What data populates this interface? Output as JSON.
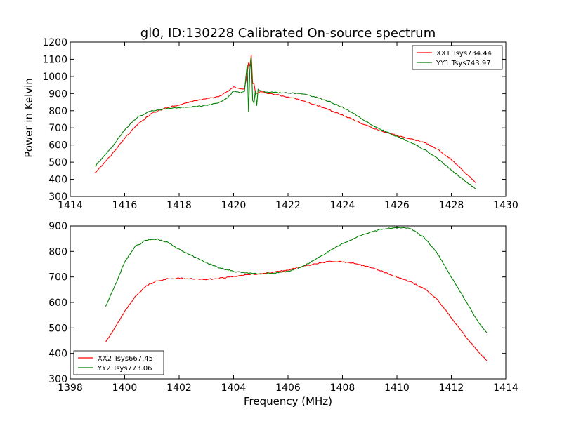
{
  "chart_data": [
    {
      "type": "line",
      "title": "gl0, ID:130228 Calibrated On-source spectrum",
      "xlabel": "",
      "ylabel": "Power in Kelvin",
      "xlim": [
        1414,
        1430
      ],
      "ylim": [
        300,
        1200
      ],
      "xticks": [
        1414,
        1416,
        1418,
        1420,
        1422,
        1424,
        1426,
        1428,
        1430
      ],
      "yticks": [
        300,
        400,
        500,
        600,
        700,
        800,
        900,
        1000,
        1100,
        1200
      ],
      "legend_position": "upper-right",
      "grid": false,
      "series": [
        {
          "name": "XX1 Tsys734.44",
          "color": "#ff0000",
          "x": [
            1414.9,
            1415.5,
            1416.0,
            1416.5,
            1417.0,
            1417.5,
            1418.0,
            1418.5,
            1419.0,
            1419.5,
            1419.8,
            1420.0,
            1420.2,
            1420.4,
            1420.5,
            1420.55,
            1420.6,
            1420.65,
            1420.7,
            1420.75,
            1420.8,
            1420.85,
            1420.9,
            1421.0,
            1421.5,
            1422.0,
            1422.5,
            1423.0,
            1423.5,
            1424.0,
            1424.5,
            1425.0,
            1425.5,
            1426.0,
            1426.5,
            1427.0,
            1427.5,
            1428.0,
            1428.5,
            1428.9
          ],
          "y": [
            435,
            540,
            640,
            725,
            785,
            815,
            835,
            855,
            870,
            885,
            915,
            940,
            928,
            925,
            1020,
            1080,
            1060,
            1125,
            960,
            955,
            910,
            900,
            905,
            910,
            895,
            880,
            860,
            835,
            805,
            775,
            740,
            705,
            680,
            655,
            635,
            615,
            575,
            515,
            440,
            380
          ]
        },
        {
          "name": "YY1 Tsys743.97",
          "color": "#008000",
          "x": [
            1414.9,
            1415.5,
            1416.0,
            1416.5,
            1417.0,
            1417.5,
            1418.0,
            1418.5,
            1419.0,
            1419.5,
            1419.8,
            1420.0,
            1420.2,
            1420.4,
            1420.5,
            1420.55,
            1420.6,
            1420.65,
            1420.7,
            1420.75,
            1420.8,
            1420.85,
            1420.9,
            1421.0,
            1421.5,
            1422.0,
            1422.5,
            1423.0,
            1423.5,
            1424.0,
            1424.5,
            1425.0,
            1425.5,
            1426.0,
            1426.5,
            1427.0,
            1427.5,
            1428.0,
            1428.5,
            1428.9
          ],
          "y": [
            475,
            580,
            690,
            765,
            800,
            812,
            818,
            822,
            830,
            850,
            880,
            915,
            905,
            912,
            1070,
            790,
            1040,
            1110,
            860,
            840,
            920,
            830,
            925,
            915,
            905,
            905,
            898,
            880,
            855,
            820,
            775,
            725,
            685,
            650,
            615,
            575,
            520,
            455,
            390,
            345
          ]
        }
      ]
    },
    {
      "type": "line",
      "title": "",
      "xlabel": "Frequency (MHz)",
      "ylabel": "",
      "xlim": [
        1398,
        1414
      ],
      "ylim": [
        300,
        900
      ],
      "xticks": [
        1398,
        1400,
        1402,
        1404,
        1406,
        1408,
        1410,
        1412,
        1414
      ],
      "yticks": [
        300,
        400,
        500,
        600,
        700,
        800,
        900
      ],
      "legend_position": "lower-left",
      "grid": false,
      "series": [
        {
          "name": "XX2 Tsys667.45",
          "color": "#ff0000",
          "x": [
            1399.3,
            1399.7,
            1400.0,
            1400.4,
            1400.8,
            1401.2,
            1401.6,
            1402.0,
            1402.5,
            1403.0,
            1403.5,
            1404.0,
            1404.5,
            1405.0,
            1405.5,
            1406.0,
            1406.5,
            1407.0,
            1407.5,
            1408.0,
            1408.5,
            1409.0,
            1409.5,
            1410.0,
            1410.5,
            1411.0,
            1411.5,
            1412.0,
            1412.5,
            1413.0,
            1413.3
          ],
          "y": [
            445,
            510,
            565,
            625,
            665,
            685,
            693,
            695,
            693,
            690,
            695,
            702,
            708,
            713,
            718,
            728,
            740,
            752,
            760,
            760,
            752,
            738,
            720,
            700,
            680,
            655,
            610,
            540,
            470,
            405,
            372
          ]
        },
        {
          "name": "YY2 Tsys773.06",
          "color": "#008000",
          "x": [
            1399.3,
            1399.7,
            1400.0,
            1400.4,
            1400.8,
            1401.2,
            1401.6,
            1402.0,
            1402.5,
            1403.0,
            1403.5,
            1404.0,
            1404.5,
            1405.0,
            1405.5,
            1406.0,
            1406.5,
            1407.0,
            1407.5,
            1408.0,
            1408.5,
            1409.0,
            1409.5,
            1410.0,
            1410.5,
            1411.0,
            1411.5,
            1412.0,
            1412.5,
            1413.0,
            1413.3
          ],
          "y": [
            585,
            680,
            760,
            820,
            845,
            848,
            835,
            808,
            782,
            755,
            735,
            722,
            715,
            712,
            715,
            722,
            738,
            768,
            800,
            830,
            855,
            875,
            888,
            893,
            890,
            855,
            790,
            700,
            610,
            520,
            482
          ]
        }
      ]
    }
  ]
}
